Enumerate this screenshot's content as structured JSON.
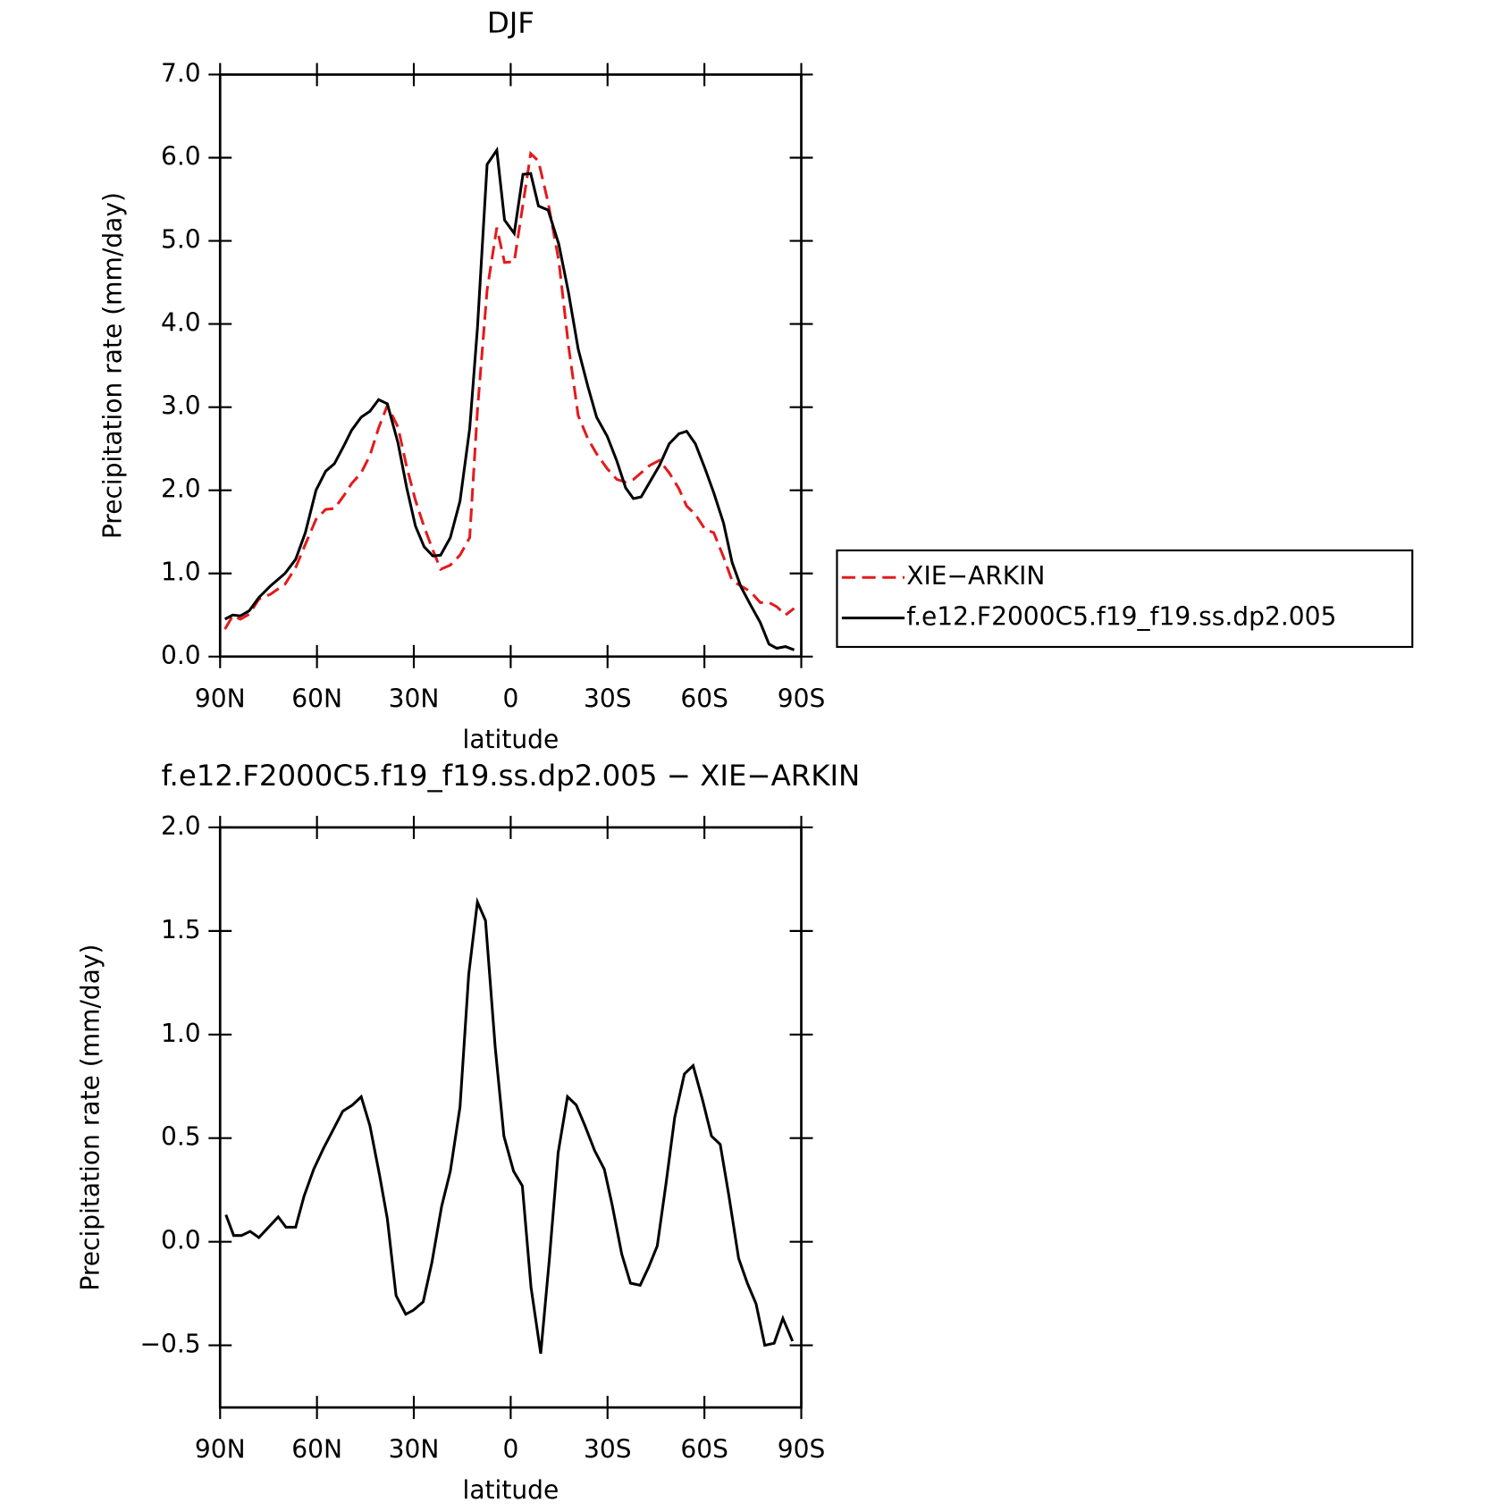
{
  "chart_data": [
    {
      "type": "line",
      "title": "DJF",
      "xlabel": "latitude",
      "ylabel": "Precipitation rate (mm/day)",
      "x": [
        88.5,
        86.1,
        83.7,
        81.0,
        78.0,
        74.4,
        69.9,
        66.6,
        63.6,
        60.3,
        57.3,
        54.6,
        51.6,
        49.3,
        46.3,
        43.6,
        40.9,
        38.2,
        34.9,
        32.2,
        29.5,
        26.8,
        24.1,
        21.7,
        18.7,
        15.7,
        12.7,
        10.3,
        7.3,
        4.3,
        1.9,
        -1.1,
        -3.8,
        -6.2,
        -8.6,
        -11.6,
        -14.9,
        -17.9,
        -20.9,
        -23.9,
        -26.6,
        -29.9,
        -32.9,
        -35.6,
        -38.0,
        -40.4,
        -43.1,
        -46.1,
        -49.1,
        -52.1,
        -54.5,
        -57.2,
        -60.2,
        -62.9,
        -65.9,
        -68.6,
        -71.3,
        -74.3,
        -77.3,
        -80.0,
        -82.4,
        -85.1,
        -87.8
      ],
      "series": [
        {
          "name": "XIE−ARKIN",
          "color": "#e41a1c",
          "dash": true,
          "values": [
            0.33,
            0.49,
            0.45,
            0.51,
            0.69,
            0.75,
            0.87,
            1.07,
            1.35,
            1.65,
            1.77,
            1.78,
            1.94,
            2.08,
            2.21,
            2.42,
            2.75,
            3.02,
            2.76,
            2.28,
            1.88,
            1.56,
            1.28,
            1.05,
            1.1,
            1.22,
            1.43,
            2.96,
            4.41,
            5.16,
            4.74,
            4.75,
            5.44,
            6.05,
            5.96,
            5.46,
            4.76,
            3.74,
            2.9,
            2.62,
            2.44,
            2.26,
            2.13,
            2.1,
            2.13,
            2.21,
            2.3,
            2.36,
            2.21,
            2.02,
            1.81,
            1.71,
            1.53,
            1.49,
            1.2,
            0.91,
            0.85,
            0.78,
            0.65,
            0.65,
            0.6,
            0.5,
            0.58
          ]
        },
        {
          "name": "f.e12.F2000C5.f19_f19.ss.dp2.005",
          "color": "#000000",
          "dash": false,
          "values": [
            0.45,
            0.5,
            0.49,
            0.55,
            0.71,
            0.85,
            1.0,
            1.17,
            1.49,
            2.0,
            2.23,
            2.32,
            2.54,
            2.72,
            2.88,
            2.95,
            3.09,
            3.04,
            2.57,
            2.03,
            1.57,
            1.32,
            1.21,
            1.22,
            1.43,
            1.87,
            2.74,
            3.95,
            5.92,
            6.09,
            5.25,
            5.09,
            5.8,
            5.81,
            5.42,
            5.37,
            4.96,
            4.38,
            3.7,
            3.25,
            2.88,
            2.65,
            2.35,
            2.03,
            1.9,
            1.92,
            2.1,
            2.3,
            2.56,
            2.68,
            2.71,
            2.56,
            2.26,
            1.97,
            1.61,
            1.13,
            0.84,
            0.62,
            0.41,
            0.15,
            0.1,
            0.12,
            0.08
          ]
        }
      ],
      "xlim": [
        90,
        -90
      ],
      "xticks": [
        {
          "value": 90,
          "label": "90N"
        },
        {
          "value": 60,
          "label": "60N"
        },
        {
          "value": 30,
          "label": "30N"
        },
        0,
        {
          "value": -30,
          "label": "30S"
        },
        {
          "value": -60,
          "label": "60S"
        },
        {
          "value": -90,
          "label": "90S"
        }
      ],
      "ylim": [
        0,
        7
      ],
      "yticks": [
        {
          "value": 0,
          "label": "0.0"
        },
        {
          "value": 1,
          "label": "1.0"
        },
        {
          "value": 2,
          "label": "2.0"
        },
        {
          "value": 3,
          "label": "3.0"
        },
        {
          "value": 4,
          "label": "4.0"
        },
        {
          "value": 5,
          "label": "5.0"
        },
        {
          "value": 6,
          "label": "6.0"
        },
        {
          "value": 7,
          "label": "7.0"
        }
      ],
      "legend": "right"
    },
    {
      "type": "line",
      "title": "f.e12.F2000C5.f19_f19.ss.dp2.005 − XIE−ARKIN",
      "xlabel": "latitude",
      "ylabel": "Precipitation rate (mm/day)",
      "x": [
        88.2,
        85.8,
        83.4,
        80.7,
        78.0,
        75.0,
        72.0,
        69.6,
        66.6,
        64.0,
        61.0,
        58.0,
        55.0,
        52.0,
        49.0,
        46.3,
        43.6,
        40.6,
        38.2,
        35.5,
        32.5,
        30.1,
        27.1,
        24.4,
        21.4,
        18.7,
        15.7,
        13.0,
        10.3,
        7.8,
        4.8,
        2.1,
        -0.9,
        -3.6,
        -6.3,
        -9.3,
        -12.0,
        -14.7,
        -17.6,
        -20.3,
        -23.0,
        -26.0,
        -29.0,
        -31.4,
        -34.4,
        -37.1,
        -40.1,
        -42.8,
        -45.4,
        -48.1,
        -50.8,
        -53.8,
        -56.5,
        -59.5,
        -62.2,
        -64.9,
        -67.6,
        -70.6,
        -73.3,
        -76.0,
        -78.7,
        -81.6,
        -84.3,
        -87.3
      ],
      "series": [
        {
          "color": "#000000",
          "dash": false,
          "values": [
            0.13,
            0.03,
            0.03,
            0.05,
            0.02,
            0.07,
            0.12,
            0.07,
            0.07,
            0.22,
            0.35,
            0.45,
            0.54,
            0.63,
            0.66,
            0.7,
            0.56,
            0.32,
            0.11,
            -0.26,
            -0.35,
            -0.33,
            -0.29,
            -0.1,
            0.17,
            0.34,
            0.65,
            1.29,
            1.64,
            1.55,
            0.94,
            0.51,
            0.34,
            0.27,
            -0.22,
            -0.54,
            -0.08,
            0.43,
            0.7,
            0.66,
            0.56,
            0.44,
            0.35,
            0.18,
            -0.06,
            -0.2,
            -0.21,
            -0.12,
            -0.02,
            0.28,
            0.6,
            0.81,
            0.85,
            0.68,
            0.51,
            0.47,
            0.22,
            -0.08,
            -0.2,
            -0.3,
            -0.5,
            -0.49,
            -0.37,
            -0.48
          ]
        }
      ],
      "xlim": [
        90,
        -90
      ],
      "xticks": [
        {
          "value": 90,
          "label": "90N"
        },
        {
          "value": 60,
          "label": "60N"
        },
        {
          "value": 30,
          "label": "30N"
        },
        0,
        {
          "value": -30,
          "label": "30S"
        },
        {
          "value": -60,
          "label": "60S"
        },
        {
          "value": -90,
          "label": "90S"
        }
      ],
      "ylim": [
        -0.8,
        2.0
      ],
      "yticks": [
        {
          "value": -0.5,
          "label": "−0.5"
        },
        {
          "value": 0,
          "label": "0.0"
        },
        0.5,
        {
          "value": 1,
          "label": "1.0"
        },
        1.5,
        {
          "value": 2,
          "label": "2.0"
        }
      ]
    }
  ]
}
